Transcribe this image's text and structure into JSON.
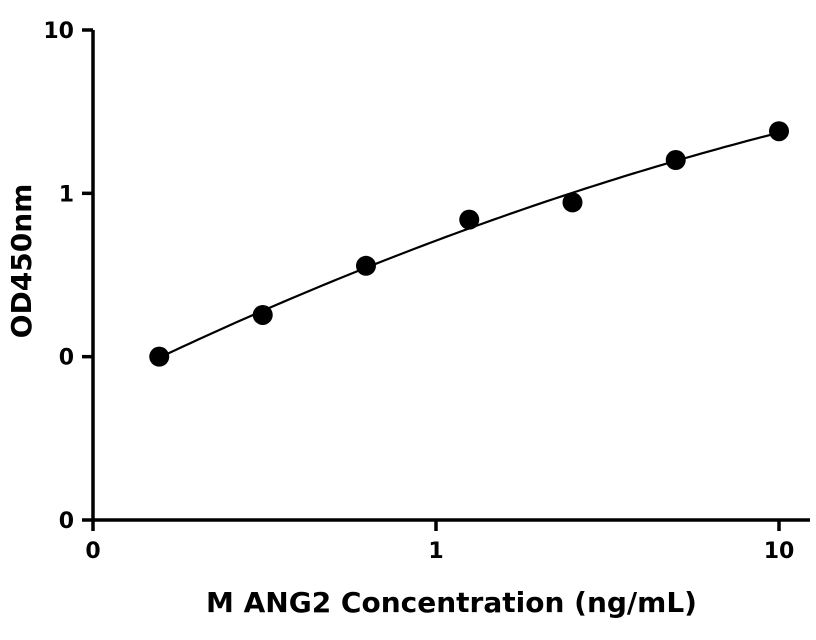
{
  "chart_data": {
    "type": "scatter",
    "title": "",
    "xlabel": "M ANG2 Concentration (ng/mL)",
    "ylabel": "OD450nm",
    "xscale": "log",
    "yscale": "log",
    "xlim": [
      0.1,
      12
    ],
    "ylim": [
      0.01,
      10
    ],
    "x_ticks": [
      {
        "value": 0.1,
        "label": "0"
      },
      {
        "value": 1,
        "label": "1"
      },
      {
        "value": 10,
        "label": "10"
      }
    ],
    "y_ticks": [
      {
        "value": 0.01,
        "label": "0"
      },
      {
        "value": 0.1,
        "label": "0"
      },
      {
        "value": 1,
        "label": "1"
      },
      {
        "value": 10,
        "label": "10"
      }
    ],
    "grid": false,
    "legend": "none",
    "marker_color": "#000000",
    "curve_color": "#000000",
    "series": [
      {
        "x": [
          0.156,
          0.3125,
          0.625,
          1.25,
          2.5,
          5,
          10
        ],
        "y": [
          0.1,
          0.18,
          0.36,
          0.69,
          0.88,
          1.6,
          2.4
        ]
      }
    ],
    "fit_curve": true
  }
}
